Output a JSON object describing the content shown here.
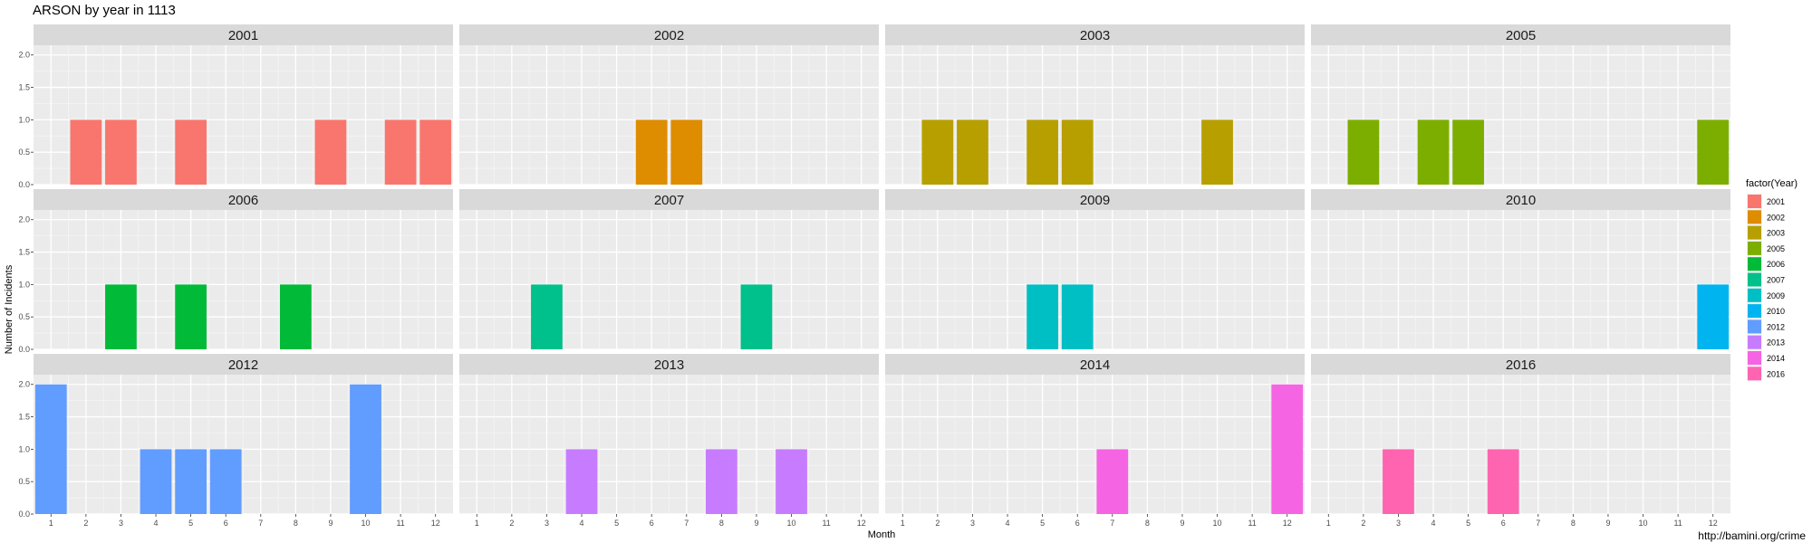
{
  "chart_data": {
    "type": "bar",
    "title": "ARSON by year in 1113",
    "xlabel": "Month",
    "ylabel": "Number of Incidents",
    "caption": "http://bamini.org/crime",
    "ylim": [
      0,
      2.15
    ],
    "xlim": [
      0.5,
      12.5
    ],
    "x_ticks": [
      1,
      2,
      3,
      4,
      5,
      6,
      7,
      8,
      9,
      10,
      11,
      12
    ],
    "y_ticks": [
      0,
      0.5,
      1,
      1.5,
      2
    ],
    "y_tick_labels": [
      "0.0",
      "0.5",
      "1.0",
      "1.5",
      "2.0"
    ],
    "grid": true,
    "legend": {
      "title": "factor(Year)",
      "position": "right"
    },
    "panels": [
      {
        "year": "2001",
        "color": "#F8766D",
        "months": [
          2,
          3,
          5,
          9,
          11,
          12
        ],
        "values": [
          1,
          1,
          1,
          1,
          1,
          1
        ]
      },
      {
        "year": "2002",
        "color": "#DE8C00",
        "months": [
          6,
          7
        ],
        "values": [
          1,
          1
        ]
      },
      {
        "year": "2003",
        "color": "#B79F00",
        "months": [
          2,
          3,
          5,
          6,
          10
        ],
        "values": [
          1,
          1,
          1,
          1,
          1
        ]
      },
      {
        "year": "2005",
        "color": "#7CAE00",
        "months": [
          2,
          4,
          5,
          12
        ],
        "values": [
          1,
          1,
          1,
          1
        ]
      },
      {
        "year": "2006",
        "color": "#00BA38",
        "months": [
          3,
          5,
          8
        ],
        "values": [
          1,
          1,
          1
        ]
      },
      {
        "year": "2007",
        "color": "#00C08B",
        "months": [
          3,
          9
        ],
        "values": [
          1,
          1
        ]
      },
      {
        "year": "2009",
        "color": "#00BFC4",
        "months": [
          5,
          6
        ],
        "values": [
          1,
          1
        ]
      },
      {
        "year": "2010",
        "color": "#00B4F0",
        "months": [
          12
        ],
        "values": [
          1
        ]
      },
      {
        "year": "2012",
        "color": "#619CFF",
        "months": [
          1,
          4,
          5,
          6,
          10
        ],
        "values": [
          2,
          1,
          1,
          1,
          2
        ]
      },
      {
        "year": "2013",
        "color": "#C77CFF",
        "months": [
          4,
          8,
          10
        ],
        "values": [
          1,
          1,
          1
        ]
      },
      {
        "year": "2014",
        "color": "#F564E3",
        "months": [
          7,
          12
        ],
        "values": [
          1,
          2
        ]
      },
      {
        "year": "2016",
        "color": "#FF64B0",
        "months": [
          3,
          6
        ],
        "values": [
          1,
          1
        ]
      }
    ]
  }
}
